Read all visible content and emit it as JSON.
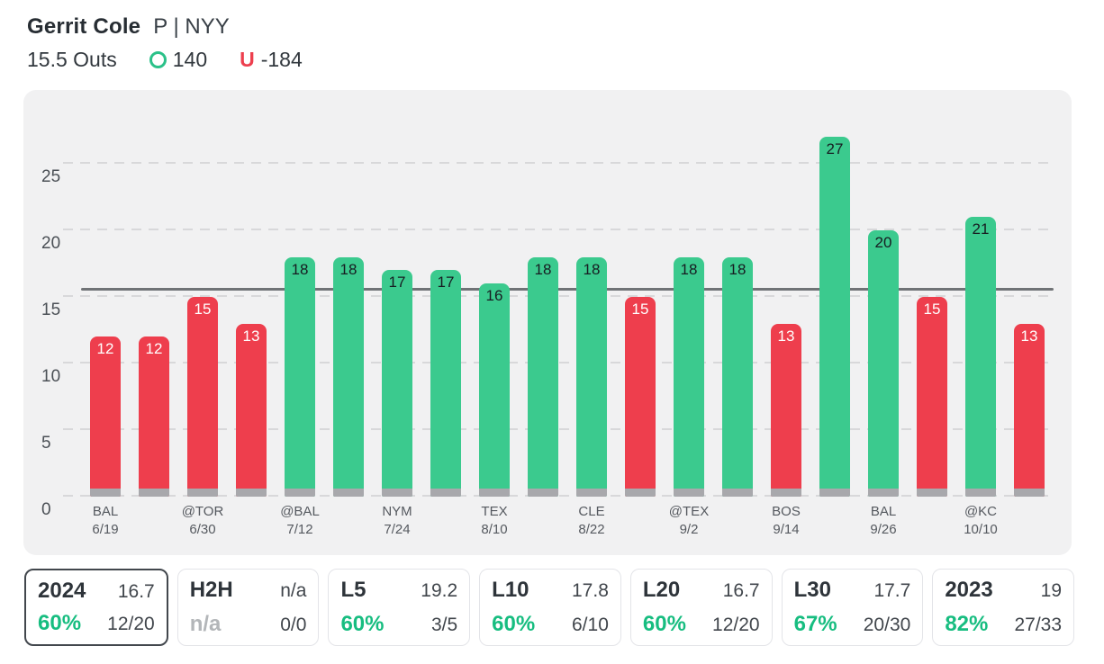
{
  "header": {
    "player_name": "Gerrit Cole",
    "position": "P | NYY",
    "prop_line": "15.5 Outs",
    "over_odds": "140",
    "under_label": "U",
    "under_odds": "-184",
    "over_color": "#2bc189",
    "under_color": "#ed3f4e"
  },
  "chart_data": {
    "type": "bar",
    "title": "",
    "ylim": [
      0,
      28
    ],
    "yticks": [
      0,
      5,
      10,
      15,
      20,
      25
    ],
    "grid": true,
    "legend": "none",
    "prop_line_value": 15.5,
    "colors": {
      "over": "#3bca8e",
      "under": "#ee3e4d",
      "bar_base": "#a8a8ac",
      "prop_line": "#707376"
    },
    "games": [
      {
        "value": 12,
        "result": "under",
        "opponent": "BAL",
        "date": "6/19"
      },
      {
        "value": 12,
        "result": "under"
      },
      {
        "value": 15,
        "result": "under",
        "opponent": "@TOR",
        "date": "6/30"
      },
      {
        "value": 13,
        "result": "under"
      },
      {
        "value": 18,
        "result": "over",
        "opponent": "@BAL",
        "date": "7/12"
      },
      {
        "value": 18,
        "result": "over"
      },
      {
        "value": 17,
        "result": "over",
        "opponent": "NYM",
        "date": "7/24"
      },
      {
        "value": 17,
        "result": "over"
      },
      {
        "value": 16,
        "result": "over",
        "opponent": "TEX",
        "date": "8/10"
      },
      {
        "value": 18,
        "result": "over"
      },
      {
        "value": 18,
        "result": "over",
        "opponent": "CLE",
        "date": "8/22"
      },
      {
        "value": 15,
        "result": "under"
      },
      {
        "value": 18,
        "result": "over",
        "opponent": "@TEX",
        "date": "9/2"
      },
      {
        "value": 18,
        "result": "over"
      },
      {
        "value": 13,
        "result": "under",
        "opponent": "BOS",
        "date": "9/14"
      },
      {
        "value": 27,
        "result": "over"
      },
      {
        "value": 20,
        "result": "over",
        "opponent": "BAL",
        "date": "9/26"
      },
      {
        "value": 15,
        "result": "under"
      },
      {
        "value": 21,
        "result": "over",
        "opponent": "@KC",
        "date": "10/10"
      },
      {
        "value": 13,
        "result": "under"
      }
    ]
  },
  "cards": [
    {
      "label": "2024",
      "value": "16.7",
      "pct": "60%",
      "record": "12/20",
      "selected": true,
      "na": false
    },
    {
      "label": "H2H",
      "value": "n/a",
      "pct": "n/a",
      "record": "0/0",
      "selected": false,
      "na": true
    },
    {
      "label": "L5",
      "value": "19.2",
      "pct": "60%",
      "record": "3/5",
      "selected": false,
      "na": false
    },
    {
      "label": "L10",
      "value": "17.8",
      "pct": "60%",
      "record": "6/10",
      "selected": false,
      "na": false
    },
    {
      "label": "L20",
      "value": "16.7",
      "pct": "60%",
      "record": "12/20",
      "selected": false,
      "na": false
    },
    {
      "label": "L30",
      "value": "17.7",
      "pct": "67%",
      "record": "20/30",
      "selected": false,
      "na": false
    },
    {
      "label": "2023",
      "value": "19",
      "pct": "82%",
      "record": "27/33",
      "selected": false,
      "na": false
    }
  ]
}
